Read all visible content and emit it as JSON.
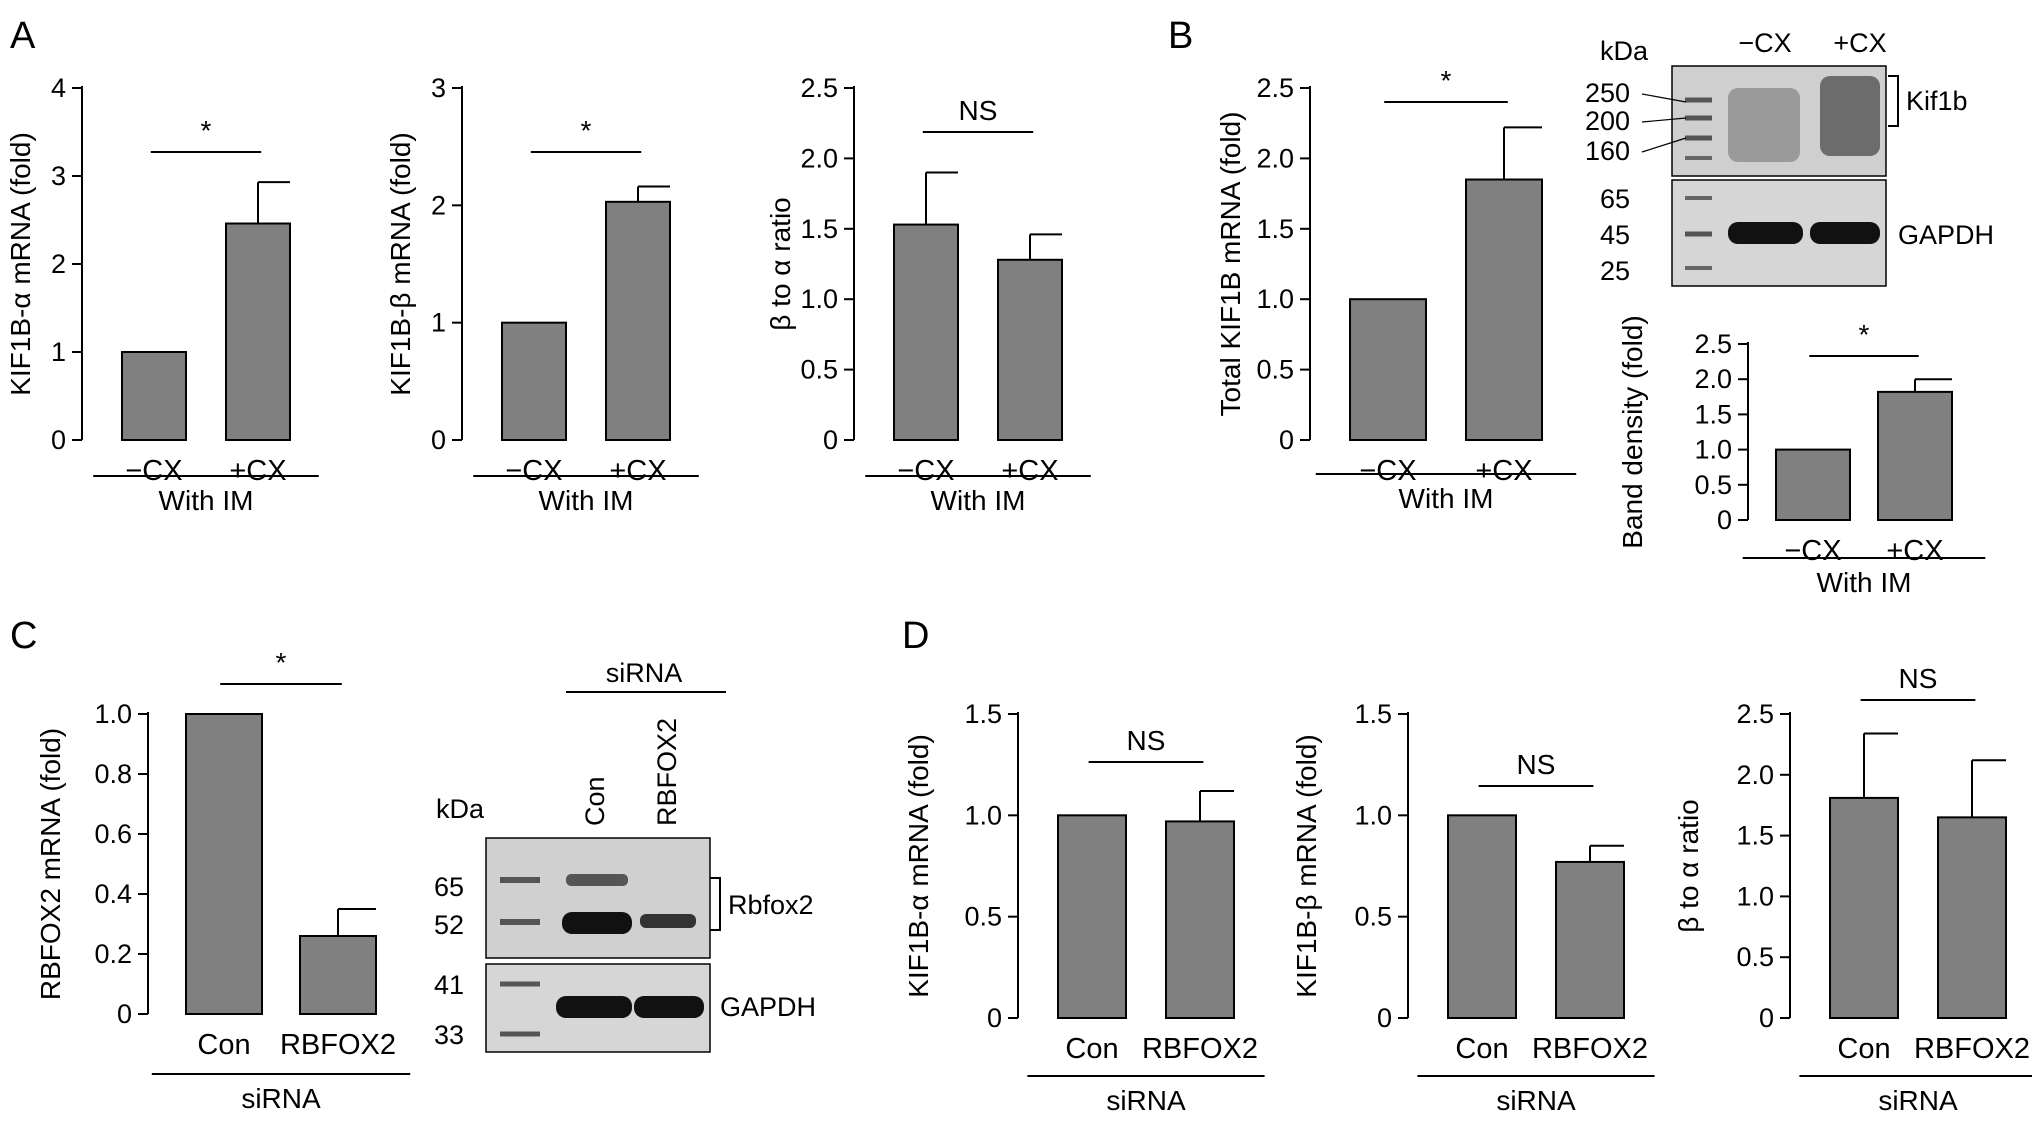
{
  "panel_labels": [
    "A",
    "B",
    "C",
    "D"
  ],
  "chart_data": [
    {
      "id": "A1",
      "type": "bar",
      "categories": [
        "−CX",
        "+CX"
      ],
      "values": [
        1.0,
        2.46
      ],
      "errors": [
        0,
        0.47
      ],
      "ylabel": "KIF1B-α mRNA (fold)",
      "ylim": [
        0,
        4
      ],
      "yticks": [
        0,
        1,
        2,
        3,
        4
      ],
      "ytick_labels": [
        "0",
        "1",
        "2",
        "3",
        "4"
      ],
      "group_label": "With IM",
      "significance": "*"
    },
    {
      "id": "A2",
      "type": "bar",
      "categories": [
        "−CX",
        "+CX"
      ],
      "values": [
        1.0,
        2.03
      ],
      "errors": [
        0,
        0.13
      ],
      "ylabel": "KIF1B-β mRNA (fold)",
      "ylim": [
        0,
        3
      ],
      "yticks": [
        0,
        1,
        2,
        3
      ],
      "ytick_labels": [
        "0",
        "1",
        "2",
        "3"
      ],
      "group_label": "With IM",
      "significance": "*"
    },
    {
      "id": "A3",
      "type": "bar",
      "categories": [
        "−CX",
        "+CX"
      ],
      "values": [
        1.53,
        1.28
      ],
      "errors": [
        0.37,
        0.18
      ],
      "ylabel": "β to α ratio",
      "ylim": [
        0,
        2.5
      ],
      "yticks": [
        0,
        0.5,
        1.0,
        1.5,
        2.0,
        2.5
      ],
      "ytick_labels": [
        "0",
        "0.5",
        "1.0",
        "1.5",
        "2.0",
        "2.5"
      ],
      "group_label": "With IM",
      "significance": "NS"
    },
    {
      "id": "B1",
      "type": "bar",
      "categories": [
        "−CX",
        "+CX"
      ],
      "values": [
        1.0,
        1.85
      ],
      "errors": [
        0,
        0.37
      ],
      "ylabel": "Total KIF1B mRNA (fold)",
      "ylim": [
        0,
        2.5
      ],
      "yticks": [
        0,
        0.5,
        1.0,
        1.5,
        2.0,
        2.5
      ],
      "ytick_labels": [
        "0",
        "0.5",
        "1.0",
        "1.5",
        "2.0",
        "2.5"
      ],
      "group_label": "With IM",
      "significance": "*"
    },
    {
      "id": "B2",
      "type": "bar",
      "categories": [
        "−CX",
        "+CX"
      ],
      "values": [
        1.0,
        1.82
      ],
      "errors": [
        0,
        0.18
      ],
      "ylabel": "Band density (fold)",
      "ylim": [
        0,
        2.5
      ],
      "yticks": [
        0,
        0.5,
        1.0,
        1.5,
        2.0,
        2.5
      ],
      "ytick_labels": [
        "0",
        "0.5",
        "1.0",
        "1.5",
        "2.0",
        "2.5"
      ],
      "group_label": "With IM",
      "significance": "*"
    },
    {
      "id": "C1",
      "type": "bar",
      "categories": [
        "Con",
        "RBFOX2"
      ],
      "values": [
        1.0,
        0.26
      ],
      "errors": [
        0,
        0.09
      ],
      "ylabel": "RBFOX2 mRNA (fold)",
      "ylim": [
        0,
        1.0
      ],
      "yticks": [
        0,
        0.2,
        0.4,
        0.6,
        0.8,
        1.0
      ],
      "ytick_labels": [
        "0",
        "0.2",
        "0.4",
        "0.6",
        "0.8",
        "1.0"
      ],
      "group_label": "siRNA",
      "significance": "*"
    },
    {
      "id": "D1",
      "type": "bar",
      "categories": [
        "Con",
        "RBFOX2"
      ],
      "values": [
        1.0,
        0.97
      ],
      "errors": [
        0,
        0.15
      ],
      "ylabel": "KIF1B-α mRNA (fold)",
      "ylim": [
        0,
        1.5
      ],
      "yticks": [
        0,
        0.5,
        1.0,
        1.5
      ],
      "ytick_labels": [
        "0",
        "0.5",
        "1.0",
        "1.5"
      ],
      "group_label": "siRNA",
      "significance": "NS"
    },
    {
      "id": "D2",
      "type": "bar",
      "categories": [
        "Con",
        "RBFOX2"
      ],
      "values": [
        1.0,
        0.77
      ],
      "errors": [
        0,
        0.08
      ],
      "ylabel": "KIF1B-β mRNA (fold)",
      "ylim": [
        0,
        1.5
      ],
      "yticks": [
        0,
        0.5,
        1.0,
        1.5
      ],
      "ytick_labels": [
        "0",
        "0.5",
        "1.0",
        "1.5"
      ],
      "group_label": "siRNA",
      "significance": "NS"
    },
    {
      "id": "D3",
      "type": "bar",
      "categories": [
        "Con",
        "RBFOX2"
      ],
      "values": [
        1.81,
        1.65
      ],
      "errors": [
        0.53,
        0.47
      ],
      "ylabel": "β to α ratio",
      "ylim": [
        0,
        2.5
      ],
      "yticks": [
        0,
        0.5,
        1.0,
        1.5,
        2.0,
        2.5
      ],
      "ytick_labels": [
        "0",
        "0.5",
        "1.0",
        "1.5",
        "2.0",
        "2.5"
      ],
      "group_label": "siRNA",
      "significance": "NS"
    }
  ],
  "blot_B": {
    "kda_label": "kDa",
    "lane_labels": [
      "−CX",
      "+CX"
    ],
    "markers_top": [
      "250",
      "200",
      "160"
    ],
    "markers_bottom": [
      "65",
      "45",
      "25"
    ],
    "protein_top": "Kif1b",
    "protein_bottom": "GAPDH"
  },
  "blot_C": {
    "header": "siRNA",
    "kda_label": "kDa",
    "lane_labels": [
      "Con",
      "RBFOX2"
    ],
    "markers_top": [
      "65",
      "52"
    ],
    "markers_bottom": [
      "41",
      "33"
    ],
    "protein_top": "Rbfox2",
    "protein_bottom": "GAPDH"
  },
  "colors": {
    "bar_fill": "#808080",
    "axis": "#000000",
    "blot_bg": "#dcdcdc",
    "band": "#111111"
  }
}
